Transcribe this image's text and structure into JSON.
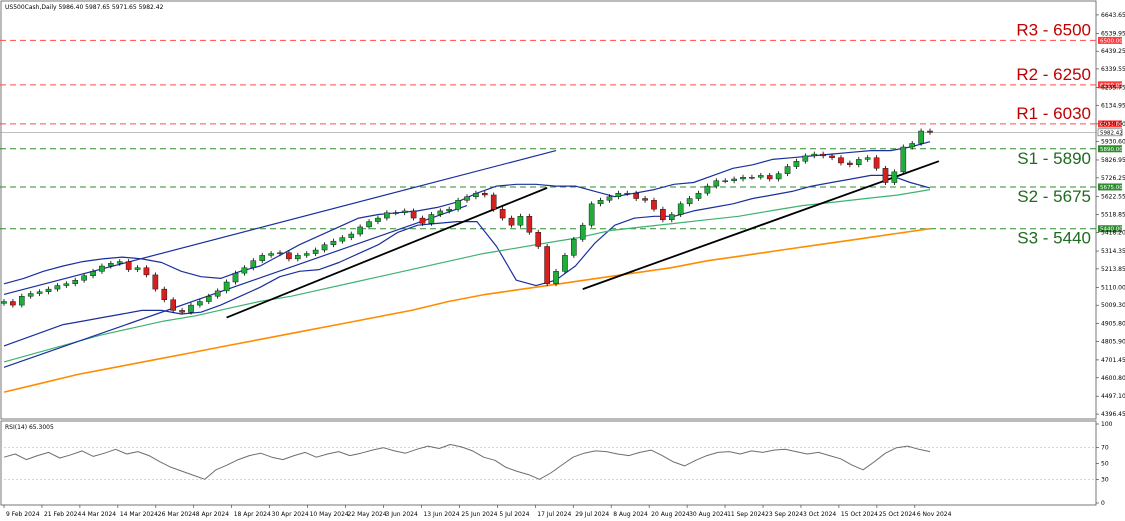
{
  "chart_data": [
    {
      "type": "candlestick",
      "header": "US500Cash,Daily  5986.40 5987.65 5971.65 5982.42",
      "x_labels": [
        "9 Feb 2024",
        "21 Feb 2024",
        "4 Mar 2024",
        "14 Mar 2024",
        "26 Mar 2024",
        "8 Apr 2024",
        "18 Apr 2024",
        "30 Apr 2024",
        "10 May 2024",
        "22 May 2024",
        "3 Jun 2024",
        "13 Jun 2024",
        "25 Jun 2024",
        "5 Jul 2024",
        "17 Jul 2024",
        "29 Jul 2024",
        "8 Aug 2024",
        "20 Aug 2024",
        "30 Aug 2024",
        "11 Sep 2024",
        "23 Sep 2024",
        "3 Oct 2024",
        "15 Oct 2024",
        "25 Oct 2024",
        "6 Nov 2024"
      ],
      "y_ticks": [
        "6643.65",
        "6539.95",
        "6439.25",
        "6339.55",
        "6235.75",
        "6134.95",
        "6030.00",
        "5930.60",
        "5826.95",
        "5726.25",
        "5622.55",
        "5518.85",
        "5418.20",
        "5314.35",
        "5213.85",
        "5110.00",
        "5009.30",
        "4905.80",
        "4805.90",
        "4701.45",
        "4600.80",
        "4497.10",
        "4396.45"
      ],
      "ylim": [
        4380,
        6660
      ],
      "last_price": "5982.42",
      "levels": [
        {
          "label": "R3 - 6500",
          "value": 6500,
          "tag": "6500.00",
          "kind": "resistance",
          "color": "#ff4d4d"
        },
        {
          "label": "R2 - 6250",
          "value": 6250,
          "tag": "6250.00",
          "kind": "resistance",
          "color": "#ff4d4d"
        },
        {
          "label": "R1 - 6030",
          "value": 6030,
          "tag": "6030.00",
          "kind": "resistance",
          "color": "#ff4d4d"
        },
        {
          "label": "S1 - 5890",
          "value": 5890,
          "tag": "5890.00",
          "kind": "support",
          "color": "#2e8b2e"
        },
        {
          "label": "S2 - 5675",
          "value": 5675,
          "tag": "5675.00",
          "kind": "support",
          "color": "#2e8b2e"
        },
        {
          "label": "S3 - 5440",
          "value": 5440,
          "tag": "5440.00",
          "kind": "support",
          "color": "#2e8b2e"
        }
      ],
      "series": [
        {
          "name": "",
          "kind": "close",
          "values": [
            5030,
            5010,
            5060,
            5075,
            5085,
            5100,
            5120,
            5130,
            5150,
            5175,
            5200,
            5230,
            5245,
            5255,
            5210,
            5220,
            5180,
            5100,
            5040,
            4980,
            4970,
            5010,
            5030,
            5060,
            5090,
            5140,
            5190,
            5220,
            5260,
            5290,
            5300,
            5305,
            5270,
            5290,
            5300,
            5320,
            5350,
            5370,
            5390,
            5410,
            5450,
            5480,
            5500,
            5530,
            5530,
            5540,
            5500,
            5470,
            5520,
            5540,
            5550,
            5600,
            5620,
            5640,
            5630,
            5550,
            5500,
            5460,
            5510,
            5420,
            5340,
            5130,
            5200,
            5290,
            5380,
            5460,
            5580,
            5600,
            5620,
            5640,
            5640,
            5610,
            5600,
            5550,
            5490,
            5520,
            5580,
            5610,
            5640,
            5680,
            5710,
            5710,
            5720,
            5730,
            5730,
            5740,
            5720,
            5750,
            5790,
            5820,
            5850,
            5860,
            5850,
            5840,
            5810,
            5800,
            5830,
            5840,
            5780,
            5700,
            5760,
            5900,
            5920,
            5990,
            5982
          ]
        },
        {
          "name": "",
          "kind": "upper_band",
          "color": "#1b2f9e",
          "values": [
            5130,
            5160,
            5200,
            5230,
            5255,
            5270,
            5280,
            5270,
            5250,
            5200,
            5170,
            5160,
            5200,
            5230,
            5290,
            5350,
            5400,
            5450,
            5500,
            5520,
            5530,
            5540,
            5560,
            5590,
            5640,
            5680,
            5690,
            5690,
            5680,
            5680,
            5650,
            5620,
            5640,
            5660,
            5690,
            5700,
            5740,
            5780,
            5800,
            5830,
            5840,
            5850,
            5860,
            5870,
            5880,
            5880,
            5900,
            5930
          ]
        },
        {
          "name": "",
          "kind": "lower_band",
          "color": "#1b2f9e",
          "values": [
            4780,
            4820,
            4860,
            4900,
            4920,
            4940,
            4960,
            4980,
            4980,
            4960,
            4970,
            5010,
            5060,
            5110,
            5170,
            5200,
            5210,
            5250,
            5300,
            5350,
            5420,
            5460,
            5470,
            5480,
            5480,
            5340,
            5150,
            5120,
            5150,
            5230,
            5360,
            5460,
            5500,
            5510,
            5510,
            5540,
            5560,
            5580,
            5610,
            5630,
            5650,
            5680,
            5700,
            5720,
            5740,
            5740,
            5700,
            5670
          ]
        },
        {
          "name": "",
          "kind": "ma_mid",
          "color": "#3cb371",
          "values": [
            4690,
            4740,
            4790,
            4840,
            4880,
            4920,
            4950,
            4990,
            5030,
            5060,
            5100,
            5140,
            5180,
            5220,
            5260,
            5300,
            5330,
            5360,
            5390,
            5430,
            5450,
            5470,
            5490,
            5510,
            5540,
            5570,
            5590,
            5610,
            5630,
            5660
          ]
        },
        {
          "name": "",
          "kind": "ma_long",
          "color": "#ff8c00",
          "values": [
            4520,
            4570,
            4620,
            4660,
            4700,
            4740,
            4780,
            4820,
            4860,
            4900,
            4940,
            4980,
            5030,
            5070,
            5100,
            5130,
            5160,
            5190,
            5220,
            5260,
            5290,
            5320,
            5350,
            5380,
            5410,
            5440
          ]
        }
      ]
    },
    {
      "type": "line",
      "header": "RSI(14) 65.3005",
      "y_ticks": [
        "100",
        "70",
        "50",
        "30",
        "0"
      ],
      "ylim": [
        0,
        100
      ],
      "series": [
        {
          "name": "RSI(14)",
          "color": "#6e6e6e",
          "values": [
            58,
            62,
            55,
            60,
            64,
            57,
            61,
            66,
            59,
            63,
            68,
            62,
            65,
            60,
            52,
            45,
            40,
            35,
            30,
            42,
            48,
            55,
            60,
            63,
            58,
            55,
            60,
            64,
            58,
            62,
            65,
            60,
            63,
            67,
            70,
            66,
            63,
            68,
            72,
            69,
            74,
            71,
            66,
            58,
            54,
            45,
            40,
            36,
            30,
            38,
            48,
            58,
            63,
            66,
            65,
            62,
            60,
            64,
            67,
            60,
            52,
            47,
            54,
            60,
            64,
            65,
            62,
            66,
            64,
            67,
            68,
            65,
            62,
            64,
            60,
            56,
            48,
            42,
            52,
            63,
            70,
            72,
            68,
            65
          ]
        }
      ]
    }
  ]
}
